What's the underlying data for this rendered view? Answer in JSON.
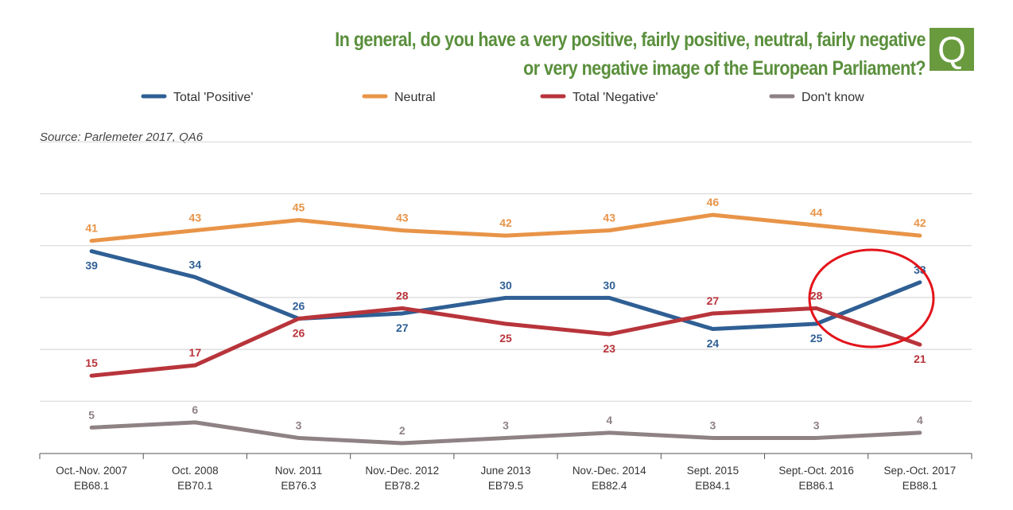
{
  "title_lines": [
    "In general, do you have a very positive, fairly positive, neutral, fairly negative",
    "or very negative image of the European Parliament?"
  ],
  "badge": "Q",
  "source": "Source: Parlemeter 2017, QA6",
  "chart_data": {
    "type": "line",
    "categories": [
      [
        "Oct.-Nov. 2007",
        "EB68.1"
      ],
      [
        "Oct. 2008",
        "EB70.1"
      ],
      [
        "Nov. 2011",
        "EB76.3"
      ],
      [
        "Nov.-Dec. 2012",
        "EB78.2"
      ],
      [
        "June 2013",
        "EB79.5"
      ],
      [
        "Nov.-Dec. 2014",
        "EB82.4"
      ],
      [
        "Sept. 2015",
        "EB84.1"
      ],
      [
        "Sept.-Oct. 2016",
        "EB86.1"
      ],
      [
        "Sep.-Oct. 2017",
        "EB88.1"
      ]
    ],
    "series": [
      {
        "name": "Total 'Positive'",
        "color": "#2f5f94",
        "values": [
          39,
          34,
          26,
          27,
          30,
          30,
          24,
          25,
          33
        ],
        "label_pos": [
          "below",
          "above",
          "above",
          "below",
          "above",
          "above",
          "below",
          "below",
          "above"
        ]
      },
      {
        "name": "Neutral",
        "color": "#e89448",
        "values": [
          41,
          43,
          45,
          43,
          42,
          43,
          46,
          44,
          42
        ],
        "label_pos": [
          "above",
          "above",
          "above",
          "above",
          "above",
          "above",
          "above",
          "above",
          "above"
        ]
      },
      {
        "name": "Total 'Negative'",
        "color": "#b8343b",
        "values": [
          15,
          17,
          26,
          28,
          25,
          23,
          27,
          28,
          21
        ],
        "label_pos": [
          "above",
          "above",
          "below",
          "above",
          "below",
          "below",
          "above",
          "above",
          "below"
        ]
      },
      {
        "name": "Don't know",
        "color": "#8f8284",
        "values": [
          5,
          6,
          3,
          2,
          3,
          4,
          3,
          3,
          4
        ],
        "label_pos": [
          "above",
          "above",
          "above",
          "above",
          "above",
          "above",
          "above",
          "above",
          "above"
        ]
      }
    ],
    "ylim": [
      0,
      50
    ],
    "grid": true,
    "legend": "top",
    "annotation": {
      "shape": "circle",
      "color": "#e3141b",
      "around": "Sep.-Oct. 2017 crossover"
    }
  }
}
